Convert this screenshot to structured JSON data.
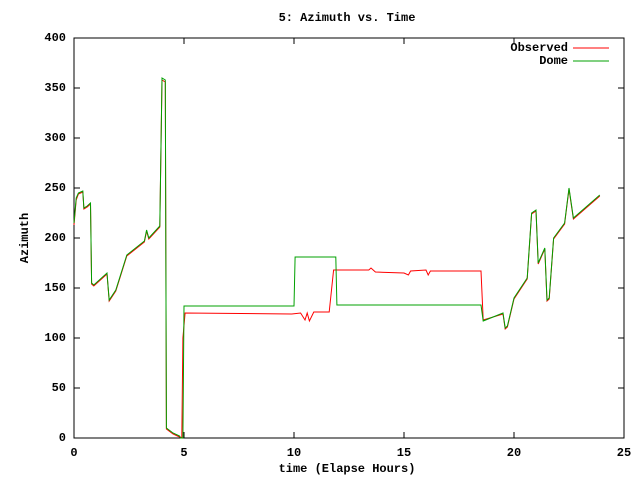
{
  "chart_data": {
    "type": "line",
    "title": "5: Azimuth vs. Time",
    "xlabel": "time (Elapse Hours)",
    "ylabel": "Azimuth",
    "xlim": [
      0,
      25
    ],
    "ylim": [
      0,
      400
    ],
    "xticks": [
      0,
      5,
      10,
      15,
      20,
      25
    ],
    "yticks": [
      0,
      50,
      100,
      150,
      200,
      250,
      300,
      350,
      400
    ],
    "legend": "top-right",
    "series": [
      {
        "name": "Observed",
        "color": "#ff0000",
        "x": [
          0,
          0.1,
          0.2,
          0.4,
          0.45,
          0.6,
          0.75,
          0.8,
          0.9,
          1.5,
          1.6,
          1.9,
          2.4,
          3.2,
          3.3,
          3.4,
          3.9,
          4.0,
          4.15,
          4.2,
          4.5,
          4.8,
          4.9,
          4.95,
          5.05,
          9.9,
          10.3,
          10.5,
          10.6,
          10.7,
          10.9,
          11.6,
          11.8,
          13.4,
          13.5,
          13.7,
          15.0,
          15.2,
          15.3,
          16.0,
          16.1,
          16.2,
          18.5,
          18.6,
          19.5,
          19.6,
          19.7,
          20.0,
          20.6,
          20.8,
          21.0,
          21.1,
          21.4,
          21.5,
          21.6,
          21.8,
          22.3,
          22.5,
          22.7,
          23.9
        ],
        "values": [
          213,
          238,
          244,
          246,
          229,
          231,
          234,
          154,
          152,
          164,
          137,
          147,
          182,
          196,
          207,
          199,
          211,
          358,
          356,
          9,
          4,
          1,
          0,
          100,
          125,
          124,
          125,
          118,
          125,
          117,
          126,
          126,
          168,
          168,
          170,
          166,
          165,
          163,
          167,
          168,
          163,
          167,
          167,
          118,
          124,
          109,
          111,
          139,
          159,
          224,
          227,
          174,
          189,
          137,
          139,
          199,
          214,
          249,
          219,
          242
        ]
      },
      {
        "name": "Dome",
        "color": "#00a000",
        "x": [
          0,
          0.1,
          0.2,
          0.4,
          0.45,
          0.6,
          0.75,
          0.8,
          0.9,
          1.5,
          1.6,
          1.9,
          2.4,
          3.2,
          3.3,
          3.4,
          3.9,
          4.0,
          4.15,
          4.2,
          4.5,
          4.8,
          4.85,
          4.95,
          5.0,
          10.0,
          10.05,
          11.9,
          11.95,
          18.5,
          18.6,
          19.5,
          19.6,
          19.7,
          20.0,
          20.6,
          20.8,
          21.0,
          21.1,
          21.4,
          21.5,
          21.6,
          21.8,
          22.3,
          22.5,
          22.7,
          23.9
        ],
        "values": [
          215,
          240,
          245,
          247,
          230,
          232,
          235,
          155,
          153,
          165,
          138,
          148,
          183,
          197,
          208,
          200,
          212,
          360,
          358,
          10,
          5,
          2,
          0,
          0,
          132,
          132,
          181,
          181,
          133,
          133,
          117,
          125,
          110,
          112,
          140,
          160,
          225,
          228,
          175,
          190,
          138,
          140,
          200,
          215,
          250,
          220,
          243
        ]
      }
    ]
  }
}
